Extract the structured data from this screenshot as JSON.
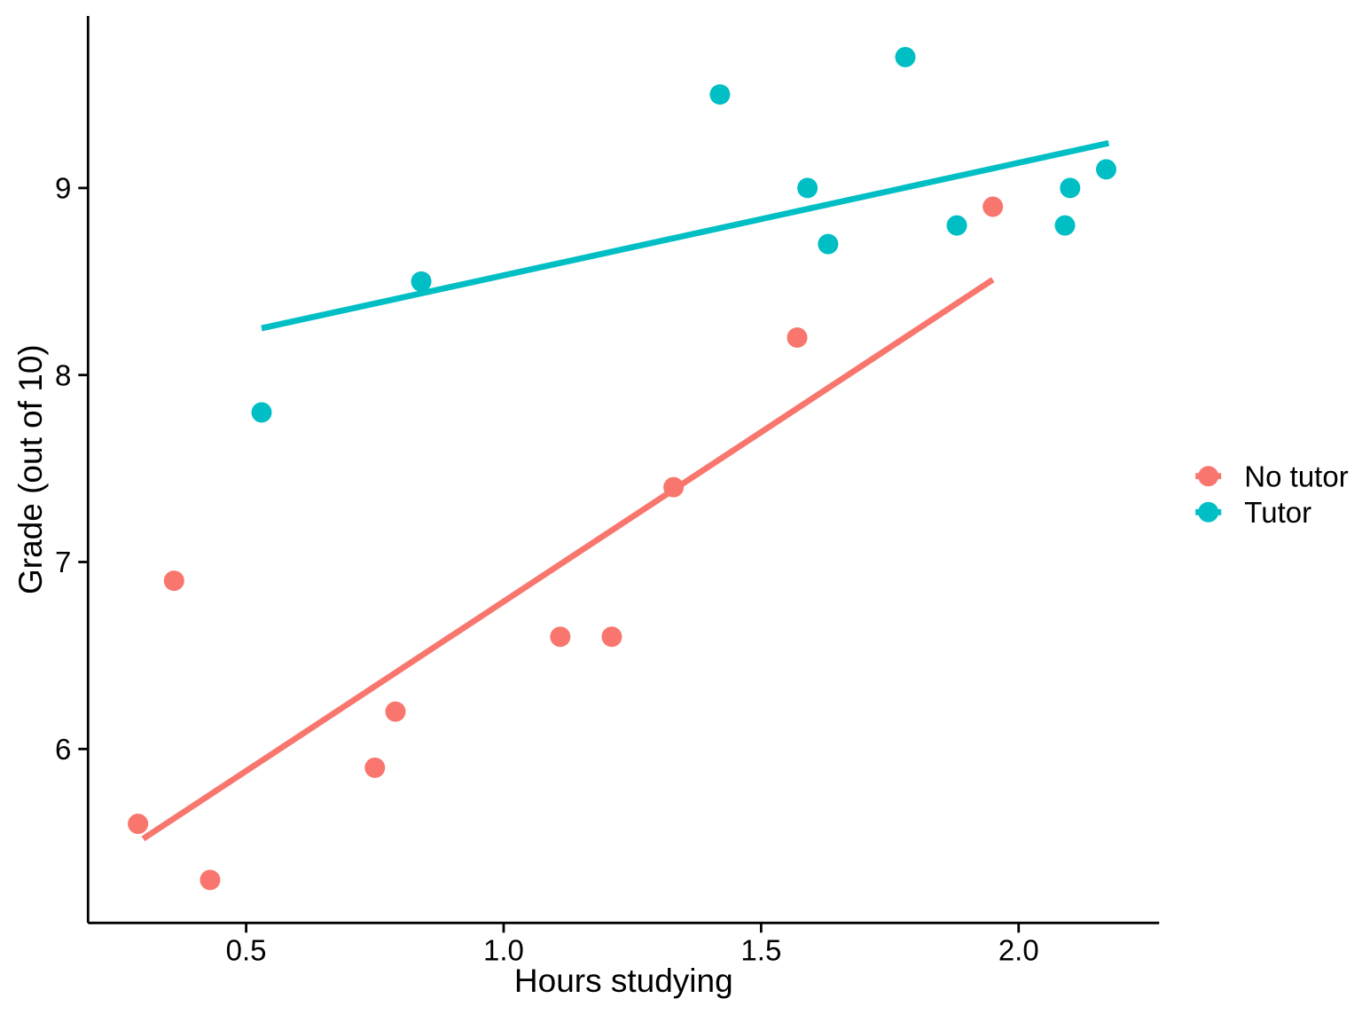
{
  "figure": {
    "background_color": "#ffffff",
    "text_color": "#000000",
    "axis_color": "#000000"
  },
  "chart_data": {
    "type": "scatter",
    "title": "",
    "xlabel": "Hours studying",
    "ylabel": "Grade (out of 10)",
    "xlim": [
      0.193,
      2.273
    ],
    "ylim": [
      5.07,
      9.92
    ],
    "xticks": [
      0.5,
      1.0,
      1.5,
      2.0
    ],
    "xtick_labels": [
      "0.5",
      "1.0",
      "1.5",
      "2.0"
    ],
    "yticks": [
      6,
      7,
      8,
      9
    ],
    "ytick_labels": [
      "6",
      "7",
      "8",
      "9"
    ],
    "grid": false,
    "legend_position": "right",
    "series": [
      {
        "name": "No tutor",
        "color": "#F8766D",
        "points": [
          [
            0.29,
            5.6
          ],
          [
            0.36,
            6.9
          ],
          [
            0.43,
            5.3
          ],
          [
            0.75,
            5.9
          ],
          [
            0.79,
            6.2
          ],
          [
            1.11,
            6.6
          ],
          [
            1.21,
            6.6
          ],
          [
            1.33,
            7.4
          ],
          [
            1.57,
            8.2
          ],
          [
            1.95,
            8.9
          ]
        ],
        "trend_line": {
          "x1": 0.3,
          "y1": 5.52,
          "x2": 1.95,
          "y2": 8.51
        }
      },
      {
        "name": "Tutor",
        "color": "#00BFC4",
        "points": [
          [
            0.53,
            7.8
          ],
          [
            0.84,
            8.5
          ],
          [
            1.42,
            9.5
          ],
          [
            1.59,
            9.0
          ],
          [
            1.63,
            8.7
          ],
          [
            1.78,
            9.7
          ],
          [
            1.88,
            8.8
          ],
          [
            2.09,
            8.8
          ],
          [
            2.1,
            9.0
          ],
          [
            2.17,
            9.1
          ]
        ],
        "trend_line": {
          "x1": 0.53,
          "y1": 8.25,
          "x2": 2.175,
          "y2": 9.24
        }
      }
    ]
  }
}
